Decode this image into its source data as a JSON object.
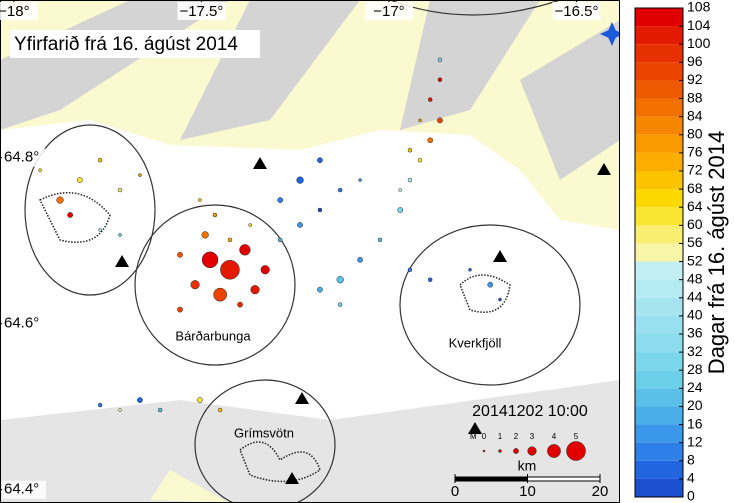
{
  "map": {
    "title": "Yfirfarið frá 16. ágúst 2014",
    "timestamp": "20141202 10:00",
    "places": [
      "Bárðarbunga",
      "Kverkfjöll",
      "Grímsvötn"
    ],
    "xlim": [
      -18.037,
      -16.384
    ],
    "ylim": [
      64.384,
      64.99
    ],
    "xticks": [
      {
        "value": -18,
        "label": "−18°"
      },
      {
        "value": -17.5,
        "label": "−17.5°"
      },
      {
        "value": -17,
        "label": "−17°"
      },
      {
        "value": -16.5,
        "label": "−16.5°"
      }
    ],
    "yticks": [
      {
        "value": 64.8,
        "label": "64.8°"
      },
      {
        "value": 64.6,
        "label": "64.6°"
      },
      {
        "value": 64.4,
        "label": "64.4°"
      }
    ],
    "magnitude_legend": {
      "label": "M",
      "values": [
        0,
        1,
        2,
        3,
        4,
        5
      ]
    },
    "scale_bar": {
      "unit": "km",
      "ticks": [
        0,
        10,
        20
      ]
    },
    "colorbar": {
      "title": "Dagar frá 16. ágúst 2014",
      "range": [
        0,
        108
      ],
      "ticks": [
        0,
        4,
        8,
        12,
        16,
        20,
        24,
        28,
        32,
        36,
        40,
        44,
        48,
        52,
        56,
        60,
        64,
        68,
        72,
        76,
        80,
        84,
        88,
        92,
        96,
        100,
        104,
        108
      ],
      "colors": [
        "#1c4fd0",
        "#2165e0",
        "#2e7fe8",
        "#3a97ea",
        "#4aaee8",
        "#5bc0e8",
        "#6ccfea",
        "#7bd6ec",
        "#8cdcee",
        "#98e0ef",
        "#a6e5f0",
        "#b4eaf2",
        "#c2eff3",
        "#f8f4a8",
        "#f9ee70",
        "#fae632",
        "#fbd800",
        "#fcc400",
        "#fcae00",
        "#f99a00",
        "#f68600",
        "#f27000",
        "#ee5a00",
        "#ea4400",
        "#e63000",
        "#e41a00",
        "#e00000"
      ]
    },
    "earthquakes": [
      [
        -17.477,
        64.677,
        104,
        4.5
      ],
      [
        -17.424,
        64.665,
        100,
        5
      ],
      [
        -17.384,
        64.689,
        106,
        3.5
      ],
      [
        -17.517,
        64.647,
        96,
        3
      ],
      [
        -17.45,
        64.635,
        92,
        4
      ],
      [
        -17.357,
        64.641,
        102,
        3
      ],
      [
        -17.557,
        64.683,
        88,
        2
      ],
      [
        -17.49,
        64.707,
        84,
        2.5
      ],
      [
        -17.397,
        64.623,
        98,
        2
      ],
      [
        -17.33,
        64.665,
        108,
        3
      ],
      [
        -17.464,
        64.731,
        76,
        1.5
      ],
      [
        -17.504,
        64.749,
        68,
        1
      ],
      [
        -17.557,
        64.617,
        94,
        2
      ],
      [
        -17.424,
        64.701,
        72,
        1.5
      ],
      [
        -17.37,
        64.719,
        64,
        1
      ],
      [
        -17.877,
        64.749,
        86,
        2.5
      ],
      [
        -17.824,
        64.773,
        62,
        2
      ],
      [
        -17.77,
        64.797,
        70,
        1.5
      ],
      [
        -17.717,
        64.761,
        58,
        1.5
      ],
      [
        -17.85,
        64.731,
        104,
        2
      ],
      [
        -17.77,
        64.713,
        40,
        1
      ],
      [
        -17.93,
        64.785,
        66,
        1
      ],
      [
        -17.664,
        64.779,
        78,
        1
      ],
      [
        -17.717,
        64.707,
        24,
        1
      ],
      [
        -17.29,
        64.749,
        10,
        2
      ],
      [
        -17.237,
        64.773,
        6,
        2.5
      ],
      [
        -17.184,
        64.797,
        4,
        2
      ],
      [
        -17.13,
        64.761,
        8,
        1.5
      ],
      [
        -17.237,
        64.719,
        14,
        2
      ],
      [
        -17.29,
        64.701,
        16,
        1.5
      ],
      [
        -17.184,
        64.737,
        2,
        1.5
      ],
      [
        -17.077,
        64.773,
        12,
        1
      ],
      [
        -17.184,
        64.641,
        18,
        2
      ],
      [
        -17.13,
        64.653,
        20,
        2.5
      ],
      [
        -17.077,
        64.677,
        14,
        2
      ],
      [
        -17.024,
        64.701,
        22,
        1.5
      ],
      [
        -17.13,
        64.623,
        26,
        1.5
      ],
      [
        -16.97,
        64.737,
        30,
        2
      ],
      [
        -16.944,
        64.773,
        44,
        1.5
      ],
      [
        -16.917,
        64.797,
        60,
        1.5
      ],
      [
        -16.89,
        64.821,
        84,
        2
      ],
      [
        -16.864,
        64.845,
        92,
        2
      ],
      [
        -16.89,
        64.87,
        100,
        1.5
      ],
      [
        -16.864,
        64.894,
        104,
        1.5
      ],
      [
        -16.917,
        64.845,
        76,
        1
      ],
      [
        -16.944,
        64.809,
        68,
        1.5
      ],
      [
        -16.864,
        64.918,
        30,
        1.5
      ],
      [
        -16.97,
        64.761,
        50,
        1
      ],
      [
        -16.944,
        64.665,
        8,
        1.5
      ],
      [
        -16.89,
        64.653,
        4,
        1.5
      ],
      [
        -16.73,
        64.647,
        12,
        2
      ],
      [
        -16.784,
        64.665,
        6,
        1
      ],
      [
        -16.704,
        64.629,
        2,
        1
      ],
      [
        -17.77,
        64.502,
        10,
        1.5
      ],
      [
        -17.664,
        64.508,
        4,
        2
      ],
      [
        -17.61,
        64.496,
        20,
        1.5
      ],
      [
        -17.504,
        64.508,
        60,
        2
      ],
      [
        -17.45,
        64.496,
        70,
        1.5
      ],
      [
        -17.717,
        64.496,
        54,
        1
      ]
    ]
  }
}
